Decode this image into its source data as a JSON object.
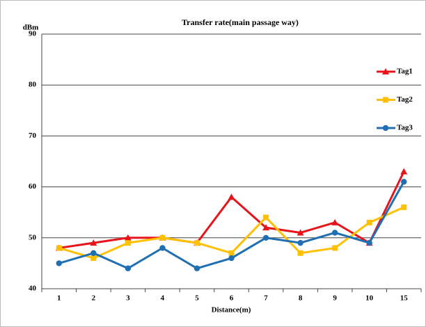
{
  "chart_data": {
    "type": "line",
    "title": "Transfer rate(main passage way)",
    "y_label": "dBm",
    "x_label": "Distance(m)",
    "categories": [
      "1",
      "2",
      "3",
      "4",
      "5",
      "6",
      "7",
      "8",
      "9",
      "10",
      "15"
    ],
    "series": [
      {
        "name": "Tag1",
        "color": "#e8141c",
        "marker": "triangle",
        "values": [
          48,
          49,
          50,
          50,
          49,
          58,
          52,
          51,
          53,
          49,
          63
        ]
      },
      {
        "name": "Tag2",
        "color": "#ffc000",
        "marker": "square",
        "values": [
          48,
          46,
          49,
          50,
          49,
          47,
          54,
          47,
          48,
          53,
          56
        ]
      },
      {
        "name": "Tag3",
        "color": "#1f6fb2",
        "marker": "circle",
        "values": [
          45,
          47,
          44,
          48,
          44,
          46,
          50,
          49,
          51,
          49,
          61
        ]
      }
    ],
    "ylim": [
      40,
      90
    ],
    "yticks": [
      40,
      50,
      60,
      70,
      80,
      90
    ],
    "grid": true,
    "legend": "right"
  }
}
